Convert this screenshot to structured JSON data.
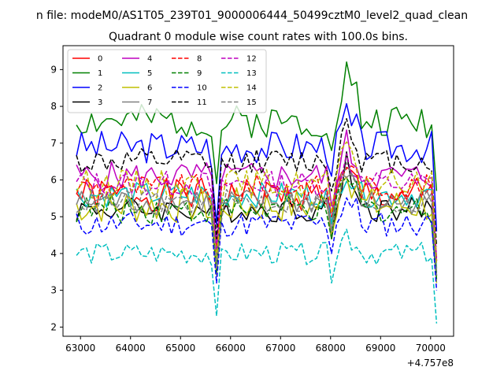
{
  "chart_data": {
    "type": "line",
    "suptitle": "n file: modeM0/AS1T05_239T01_9000006444_50499cztM0_level2_quad_clean",
    "title": "Quadrant 0 module wise count rates with 100.0s bins.",
    "xlabel": "",
    "ylabel": "",
    "x_offset_label": "+4.757e8",
    "xlim": [
      62650,
      70460
    ],
    "ylim": [
      1.75,
      9.65
    ],
    "x_ticks": [
      63000,
      64000,
      65000,
      66000,
      67000,
      68000,
      69000,
      70000
    ],
    "x_tick_labels": [
      "63000",
      "64000",
      "65000",
      "66000",
      "67000",
      "68000",
      "69000",
      "70000"
    ],
    "y_ticks": [
      2,
      3,
      4,
      5,
      6,
      7,
      8,
      9
    ],
    "y_tick_labels": [
      "2",
      "3",
      "4",
      "5",
      "6",
      "7",
      "8",
      "9"
    ],
    "grid": false,
    "legend_position": "top-left",
    "legend_columns": 4,
    "x": [
      62920,
      63020,
      63120,
      63220,
      63320,
      63420,
      63520,
      63620,
      63720,
      63820,
      63920,
      64020,
      64120,
      64220,
      64320,
      64420,
      64520,
      64620,
      64720,
      64820,
      64920,
      65020,
      65120,
      65220,
      65320,
      65420,
      65520,
      65620,
      65720,
      65820,
      65920,
      66020,
      66120,
      66220,
      66320,
      66420,
      66520,
      66620,
      66720,
      66820,
      66920,
      67020,
      67120,
      67220,
      67320,
      67420,
      67520,
      67620,
      67720,
      67820,
      67920,
      68020,
      68120,
      68220,
      68320,
      68420,
      68520,
      68620,
      68720,
      68820,
      68920,
      69020,
      69120,
      69220,
      69320,
      69420,
      69520,
      69620,
      69720,
      69820,
      69920,
      70020,
      70120
    ],
    "series": [
      {
        "name": "0",
        "color": "#ff0000",
        "dash": "solid",
        "base": 5.6,
        "amp": 0.45,
        "drop": 3.8,
        "peak": 0.6,
        "seed": 1
      },
      {
        "name": "1",
        "color": "#008000",
        "dash": "solid",
        "base": 7.6,
        "amp": 0.45,
        "drop": 5.7,
        "peak": 1.4,
        "seed": 2
      },
      {
        "name": "2",
        "color": "#0000ff",
        "dash": "solid",
        "base": 6.9,
        "amp": 0.45,
        "drop": 4.6,
        "peak": 0.9,
        "seed": 3
      },
      {
        "name": "3",
        "color": "#000000",
        "dash": "solid",
        "base": 5.2,
        "amp": 0.35,
        "drop": 3.4,
        "peak": 1.3,
        "seed": 4
      },
      {
        "name": "4",
        "color": "#bf00bf",
        "dash": "solid",
        "base": 6.1,
        "amp": 0.4,
        "drop": 3.9,
        "peak": 0.9,
        "seed": 5
      },
      {
        "name": "5",
        "color": "#00bfbf",
        "dash": "solid",
        "base": 5.6,
        "amp": 0.35,
        "drop": 3.6,
        "peak": 0.7,
        "seed": 6
      },
      {
        "name": "6",
        "color": "#bfbf00",
        "dash": "solid",
        "base": 5.3,
        "amp": 0.5,
        "drop": 3.2,
        "peak": 1.2,
        "seed": 7
      },
      {
        "name": "7",
        "color": "#808080",
        "dash": "solid",
        "base": 5.4,
        "amp": 0.35,
        "drop": 3.5,
        "peak": 0.9,
        "seed": 8
      },
      {
        "name": "8",
        "color": "#ff0000",
        "dash": "dashed",
        "base": 5.8,
        "amp": 0.35,
        "drop": 3.8,
        "peak": 0.7,
        "seed": 9
      },
      {
        "name": "9",
        "color": "#008000",
        "dash": "dashed",
        "base": 5.2,
        "amp": 0.4,
        "drop": 3.3,
        "peak": 1.0,
        "seed": 10
      },
      {
        "name": "10",
        "color": "#0000ff",
        "dash": "dashed",
        "base": 4.8,
        "amp": 0.35,
        "drop": 3.0,
        "peak": 0.8,
        "seed": 11
      },
      {
        "name": "11",
        "color": "#000000",
        "dash": "dashed",
        "base": 6.5,
        "amp": 0.35,
        "drop": 4.2,
        "peak": 1.2,
        "seed": 12
      },
      {
        "name": "12",
        "color": "#bf00bf",
        "dash": "dashed",
        "base": 5.9,
        "amp": 0.35,
        "drop": 3.8,
        "peak": 0.8,
        "seed": 13
      },
      {
        "name": "13",
        "color": "#00bfbf",
        "dash": "dashed",
        "base": 4.0,
        "amp": 0.3,
        "drop": 2.1,
        "peak": 0.6,
        "seed": 14
      },
      {
        "name": "14",
        "color": "#bfbf00",
        "dash": "dashed",
        "base": 5.9,
        "amp": 0.4,
        "drop": 3.7,
        "peak": 1.0,
        "seed": 15
      },
      {
        "name": "15",
        "color": "#808080",
        "dash": "dashed",
        "base": 5.4,
        "amp": 0.35,
        "drop": 3.4,
        "peak": 0.9,
        "seed": 16
      }
    ]
  }
}
